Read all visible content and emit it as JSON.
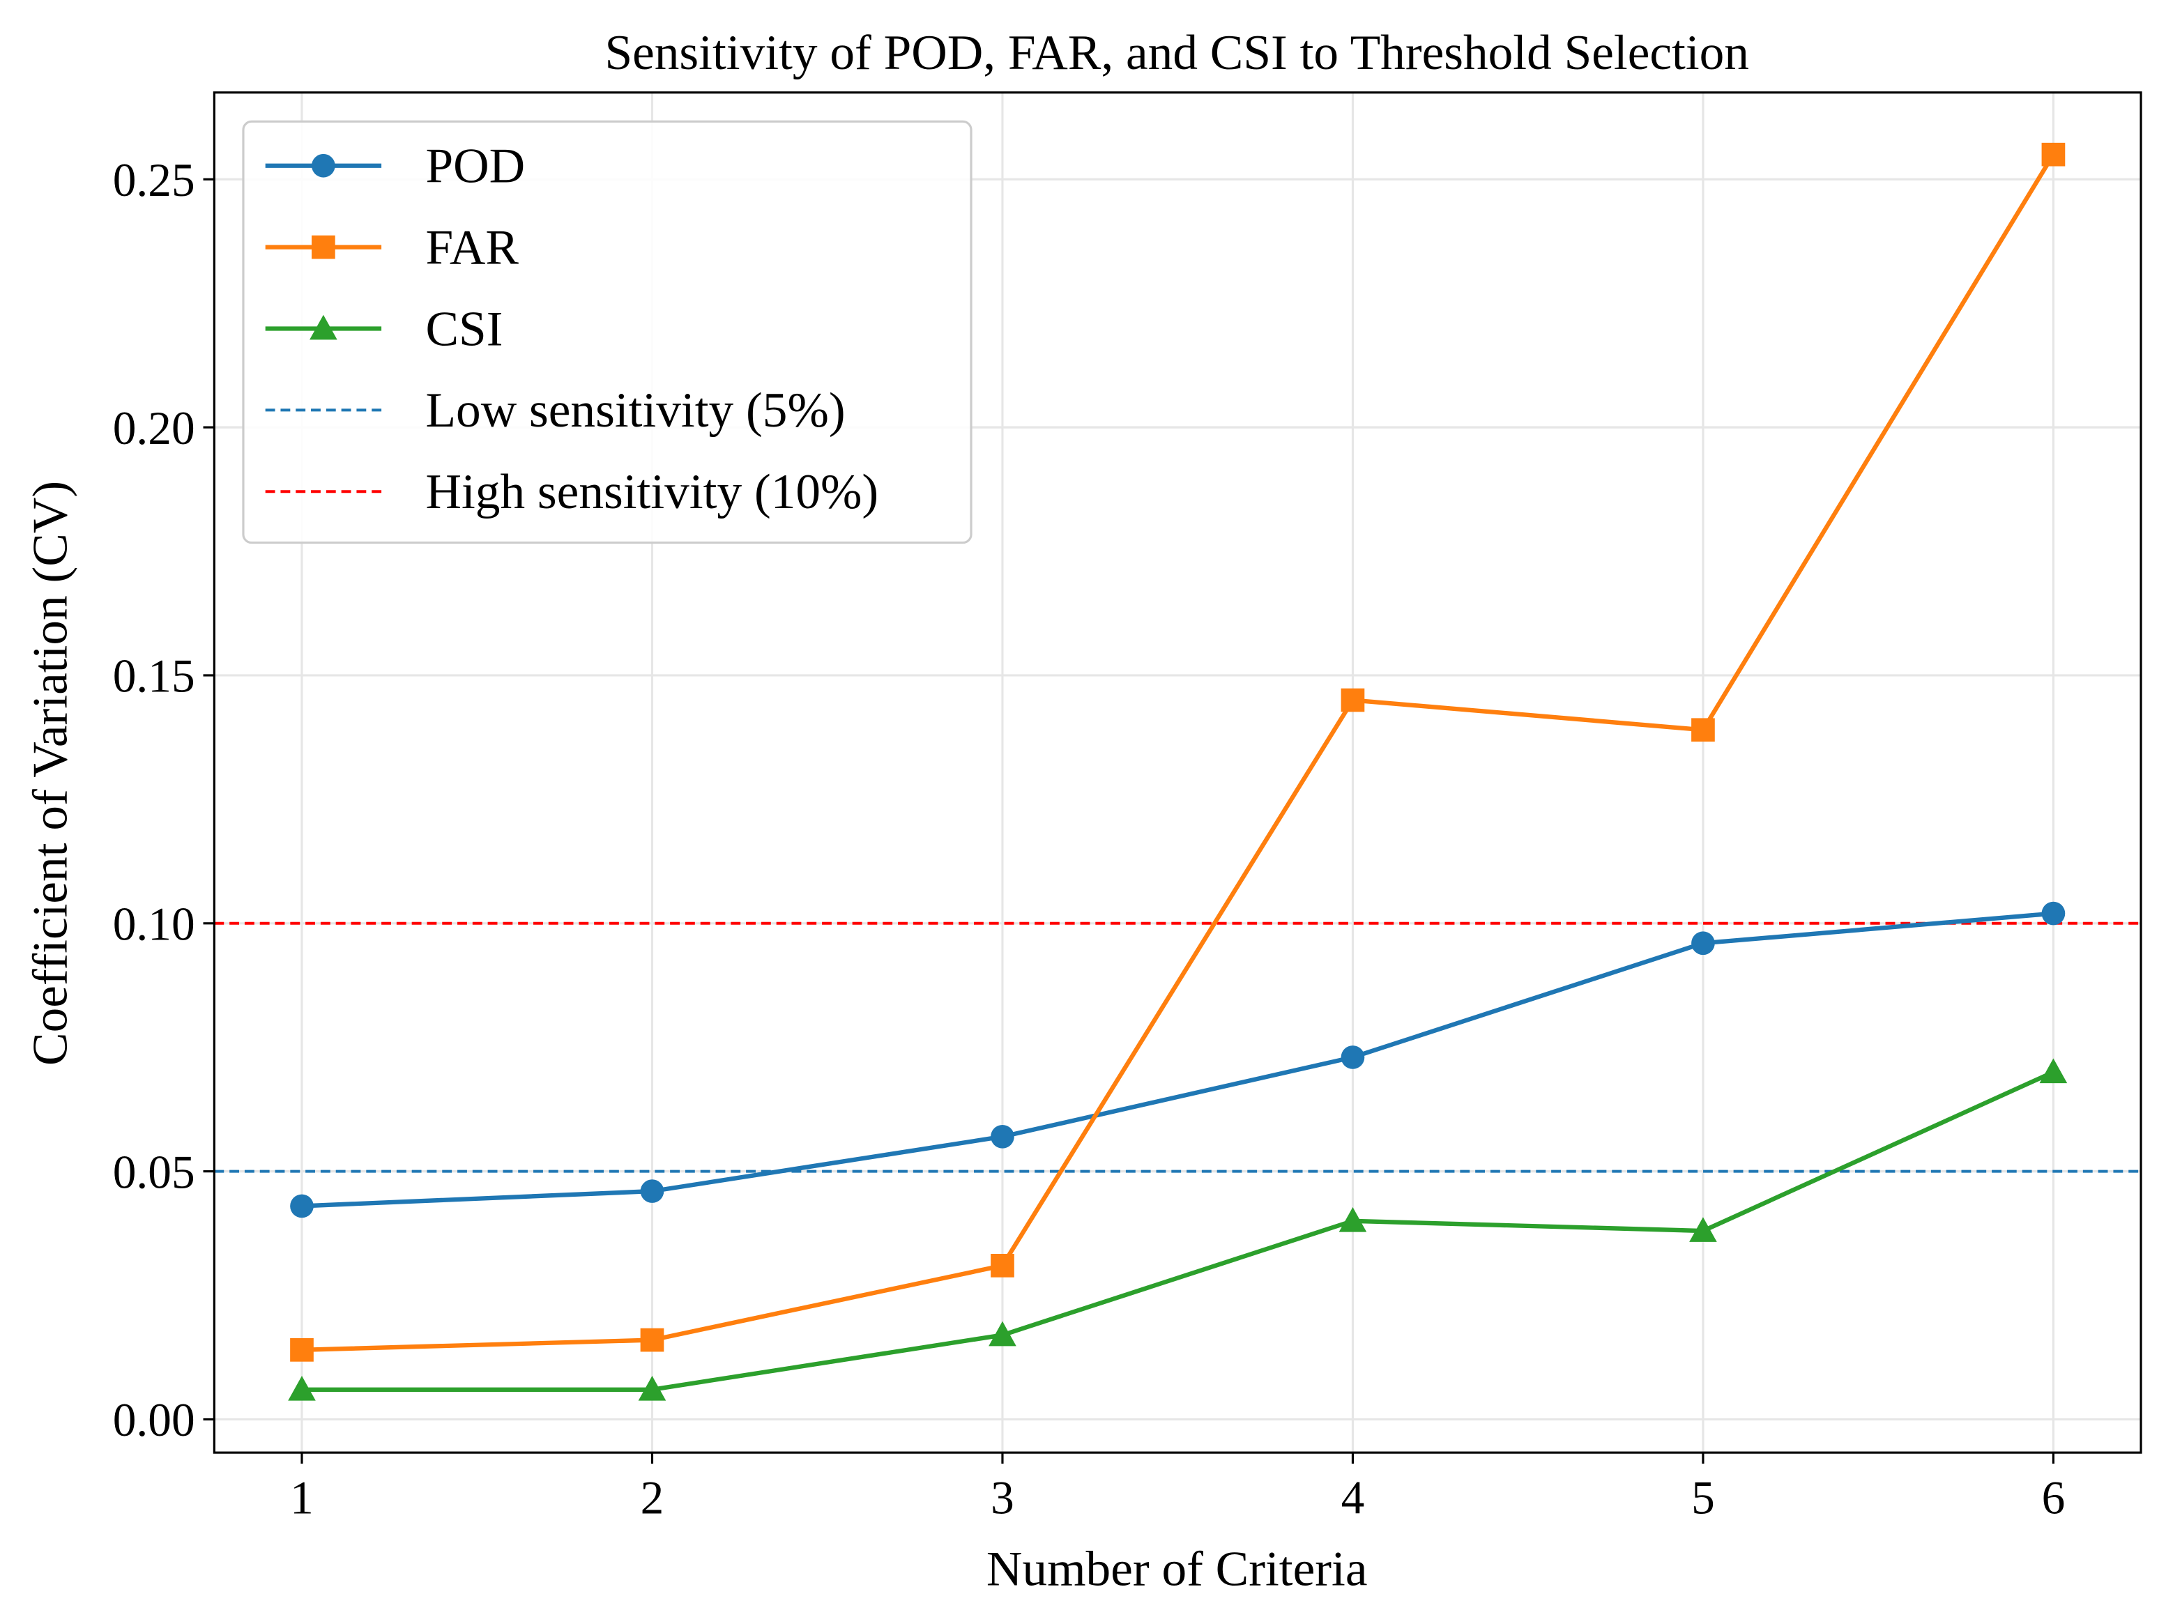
{
  "chart_data": {
    "type": "line",
    "title": "Sensitivity of POD, FAR, and CSI to Threshold Selection",
    "xlabel": "Number of Criteria",
    "ylabel": "Coefficient of Variation (CV)",
    "x": [
      1,
      2,
      3,
      4,
      5,
      6
    ],
    "xlim": [
      0.75,
      6.25
    ],
    "ylim": [
      -0.0067,
      0.2675
    ],
    "xticks": [
      "1",
      "2",
      "3",
      "4",
      "5",
      "6"
    ],
    "yticks": [
      0.0,
      0.05,
      0.1,
      0.15,
      0.2,
      0.25
    ],
    "ytick_labels": [
      "0.00",
      "0.05",
      "0.10",
      "0.15",
      "0.20",
      "0.25"
    ],
    "grid": true,
    "legend_position": "top-left",
    "series": [
      {
        "name": "POD",
        "color": "#1f77b4",
        "marker": "circle",
        "values": [
          0.043,
          0.046,
          0.057,
          0.073,
          0.096,
          0.102
        ]
      },
      {
        "name": "FAR",
        "color": "#ff7f0e",
        "marker": "square",
        "values": [
          0.014,
          0.016,
          0.031,
          0.145,
          0.139,
          0.255
        ]
      },
      {
        "name": "CSI",
        "color": "#2ca02c",
        "marker": "triangle",
        "values": [
          0.006,
          0.006,
          0.017,
          0.04,
          0.038,
          0.07
        ]
      }
    ],
    "reference_lines": [
      {
        "name": "Low sensitivity (5%)",
        "y": 0.05,
        "color": "#1f77b4",
        "style": "dashed"
      },
      {
        "name": "High sensitivity (10%)",
        "y": 0.1,
        "color": "#ff0000",
        "style": "dashed"
      }
    ]
  }
}
